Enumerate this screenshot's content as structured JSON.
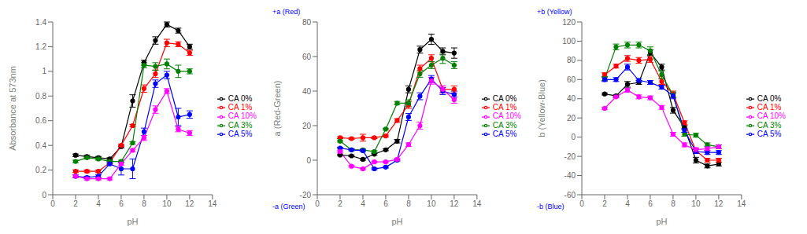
{
  "chart_data": [
    {
      "type": "line",
      "xlabel": "pH",
      "ylabel": "Absorbance at 573nm",
      "x": [
        2,
        3,
        4,
        5,
        6,
        7,
        8,
        9,
        10,
        11,
        12
      ],
      "xlim": [
        0,
        14
      ],
      "xticks": [
        0,
        2,
        4,
        6,
        8,
        10,
        12,
        14
      ],
      "ylim": [
        0,
        1.4
      ],
      "yticks": [
        0,
        0.2,
        0.4,
        0.6,
        0.8,
        1,
        1.2,
        1.4
      ],
      "grid": false,
      "legend": "right",
      "series": [
        {
          "name": "CA 0%",
          "color": "black",
          "marker": "o",
          "values": [
            0.32,
            0.31,
            0.3,
            0.29,
            0.39,
            0.76,
            1.07,
            1.25,
            1.38,
            1.33,
            1.2
          ],
          "errors": [
            0.01,
            0.01,
            0.01,
            0.01,
            0.01,
            0.05,
            0.02,
            0.03,
            0.02,
            0.02,
            0.02
          ]
        },
        {
          "name": "CA 1%",
          "color": "red",
          "marker": "o",
          "values": [
            0.19,
            0.19,
            0.19,
            0.26,
            0.4,
            0.56,
            0.86,
            0.98,
            1.23,
            1.22,
            1.15
          ],
          "errors": [
            0.01,
            0.01,
            0.01,
            0.01,
            0.01,
            0.01,
            0.03,
            0.03,
            0.03,
            0.02,
            0.02
          ]
        },
        {
          "name": "CA 3%",
          "color": "green",
          "marker": "o",
          "values": [
            0.27,
            0.3,
            0.29,
            0.27,
            0.27,
            0.42,
            1.05,
            1.04,
            1.06,
            1.0,
            1.0
          ],
          "errors": [
            0.01,
            0.01,
            0.01,
            0.01,
            0.01,
            0.01,
            0.02,
            0.03,
            0.04,
            0.05,
            0.02
          ]
        },
        {
          "name": "CA 5%",
          "color": "blue",
          "marker": "o",
          "values": [
            0.15,
            0.14,
            0.15,
            0.25,
            0.21,
            0.21,
            0.51,
            0.9,
            0.97,
            0.63,
            0.65
          ],
          "errors": [
            0.01,
            0.01,
            0.01,
            0.01,
            0.05,
            0.08,
            0.03,
            0.03,
            0.03,
            0.07,
            0.03
          ]
        },
        {
          "name": "CA 10%",
          "color": "magenta",
          "marker": "o",
          "values": [
            0.15,
            0.13,
            0.13,
            0.13,
            0.25,
            0.36,
            0.46,
            0.69,
            0.84,
            0.53,
            0.5
          ],
          "errors": [
            0.01,
            0.01,
            0.01,
            0.01,
            0.01,
            0.01,
            0.02,
            0.03,
            0.02,
            0.02,
            0.02
          ]
        }
      ]
    },
    {
      "type": "line",
      "xlabel": "pH",
      "ylabel": "a (Red-Green)",
      "x": [
        2,
        3,
        4,
        5,
        6,
        7,
        8,
        9,
        10,
        11,
        12
      ],
      "xlim": [
        0,
        14
      ],
      "xticks": [
        0,
        2,
        4,
        6,
        8,
        10,
        12,
        14
      ],
      "ylim": [
        -20,
        80
      ],
      "yticks": [
        -20,
        0,
        20,
        40,
        60,
        80
      ],
      "grid": false,
      "legend": "right",
      "annotations": [
        {
          "text": "+a (Red)",
          "color": "blue"
        },
        {
          "text": "-a (Green)",
          "color": "blue"
        }
      ],
      "series": [
        {
          "name": "CA 0%",
          "color": "black",
          "marker": "o",
          "values": [
            3.0,
            2.5,
            0.5,
            3.5,
            6.0,
            11.0,
            41.0,
            64.0,
            70.0,
            63.0,
            62.0
          ],
          "errors": [
            0.5,
            0.5,
            0.5,
            0.5,
            0.5,
            1.0,
            2.0,
            2.0,
            3.0,
            2.0,
            3.0
          ]
        },
        {
          "name": "CA 1%",
          "color": "red",
          "marker": "o",
          "values": [
            13.0,
            12.5,
            13.0,
            13.0,
            14.0,
            23.0,
            32.0,
            53.0,
            59.0,
            41.0,
            41.0
          ],
          "errors": [
            0.5,
            0.5,
            2.0,
            0.5,
            0.5,
            1.0,
            2.0,
            2.0,
            2.0,
            2.0,
            2.0
          ]
        },
        {
          "name": "CA 3%",
          "color": "green",
          "marker": "o",
          "values": [
            11.0,
            6.0,
            6.0,
            5.0,
            18.0,
            33.0,
            33.0,
            50.0,
            55.0,
            59.0,
            55.0
          ],
          "errors": [
            0.5,
            0.5,
            0.5,
            0.5,
            0.5,
            1.0,
            2.0,
            2.0,
            2.0,
            3.0,
            2.0
          ]
        },
        {
          "name": "CA 5%",
          "color": "blue",
          "marker": "o",
          "values": [
            7.0,
            6.0,
            5.5,
            -5.0,
            -4.0,
            0.0,
            25.0,
            37.0,
            47.0,
            40.0,
            38.0
          ],
          "errors": [
            0.5,
            0.5,
            0.5,
            0.5,
            0.5,
            0.5,
            2.0,
            2.0,
            2.0,
            2.0,
            2.0
          ]
        },
        {
          "name": "CA 10%",
          "color": "magenta",
          "marker": "o",
          "values": [
            5.0,
            -3.5,
            -5.0,
            -1.0,
            -1.0,
            0.5,
            9.0,
            20.0,
            46.0,
            41.0,
            35.0
          ],
          "errors": [
            0.5,
            0.5,
            0.5,
            0.5,
            0.5,
            0.5,
            1.0,
            2.0,
            2.0,
            2.0,
            2.0
          ]
        }
      ]
    },
    {
      "type": "line",
      "xlabel": "pH",
      "ylabel": "b (Yellow-Blue)",
      "x": [
        2,
        3,
        4,
        5,
        6,
        7,
        8,
        9,
        10,
        11,
        12
      ],
      "xlim": [
        0,
        14
      ],
      "xticks": [
        0,
        2,
        4,
        6,
        8,
        10,
        12,
        14
      ],
      "ylim": [
        -60,
        120
      ],
      "yticks": [
        -60,
        -40,
        -20,
        0,
        20,
        40,
        60,
        80,
        100,
        120
      ],
      "grid": false,
      "legend": "right",
      "annotations": [
        {
          "text": "+b (Yellow)",
          "color": "blue"
        },
        {
          "text": "-b (Blue)",
          "color": "blue"
        }
      ],
      "series": [
        {
          "name": "CA 0%",
          "color": "black",
          "marker": "o",
          "values": [
            45.0,
            43.0,
            55.0,
            57.0,
            88.0,
            73.0,
            28.0,
            10.0,
            -24.0,
            -30.0,
            -28.0
          ],
          "errors": [
            1.0,
            1.0,
            3.0,
            2.0,
            3.0,
            3.0,
            3.0,
            2.0,
            3.0,
            2.0,
            2.0
          ]
        },
        {
          "name": "CA 1%",
          "color": "red",
          "marker": "o",
          "values": [
            65.0,
            74.0,
            82.0,
            80.0,
            81.0,
            58.0,
            45.0,
            15.0,
            -14.0,
            -24.0,
            -24.0
          ],
          "errors": [
            2.0,
            2.0,
            3.0,
            3.0,
            3.0,
            3.0,
            3.0,
            2.0,
            2.0,
            2.0,
            2.0
          ]
        },
        {
          "name": "CA 3%",
          "color": "green",
          "marker": "o",
          "values": [
            61.0,
            94.0,
            96.0,
            96.0,
            90.0,
            65.0,
            44.0,
            3.0,
            2.0,
            -8.0,
            -10.0
          ],
          "errors": [
            2.0,
            3.0,
            3.0,
            3.0,
            4.0,
            4.0,
            3.0,
            2.0,
            2.0,
            2.0,
            2.0
          ]
        },
        {
          "name": "CA 5%",
          "color": "blue",
          "marker": "o",
          "values": [
            60.0,
            60.0,
            73.0,
            59.0,
            57.0,
            52.0,
            43.0,
            7.0,
            -15.0,
            -16.0,
            -16.0
          ],
          "errors": [
            2.0,
            2.0,
            3.0,
            2.0,
            2.0,
            2.0,
            3.0,
            2.0,
            2.0,
            2.0,
            2.0
          ]
        },
        {
          "name": "CA 10%",
          "color": "magenta",
          "marker": "o",
          "values": [
            30.0,
            42.0,
            49.0,
            42.0,
            41.0,
            31.0,
            3.0,
            -8.0,
            -13.0,
            -12.0,
            -10.0
          ],
          "errors": [
            1.0,
            1.0,
            2.0,
            2.0,
            2.0,
            2.0,
            2.0,
            2.0,
            2.0,
            2.0,
            2.0
          ]
        }
      ]
    }
  ]
}
